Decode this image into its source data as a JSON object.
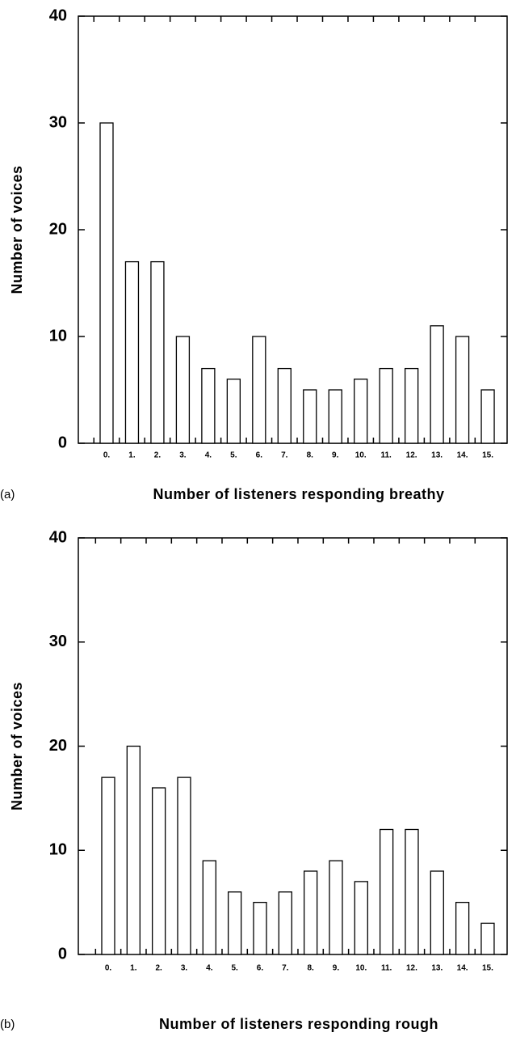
{
  "chart_data": [
    {
      "type": "bar",
      "panel_label": "(a)",
      "xlabel": "Number of listeners responding breathy",
      "ylabel": "Number of voices",
      "categories": [
        "0.",
        "1.",
        "2.",
        "3.",
        "4.",
        "5.",
        "6.",
        "7.",
        "8.",
        "9.",
        "10.",
        "11.",
        "12.",
        "13.",
        "14.",
        "15."
      ],
      "values": [
        30,
        17,
        17,
        10,
        7,
        6,
        10,
        7,
        5,
        5,
        6,
        7,
        7,
        11,
        10,
        5
      ],
      "color": "#ffffff",
      "ylim": [
        0,
        40
      ],
      "yticks": [
        0,
        10,
        20,
        30,
        40
      ]
    },
    {
      "type": "bar",
      "panel_label": "(b)",
      "xlabel": "Number of listeners responding rough",
      "ylabel": "Number of voices",
      "categories": [
        "0.",
        "1.",
        "2.",
        "3.",
        "4.",
        "5.",
        "6.",
        "7.",
        "8.",
        "9.",
        "10.",
        "11.",
        "12.",
        "13.",
        "14.",
        "15."
      ],
      "values": [
        17,
        20,
        16,
        17,
        9,
        6,
        5,
        6,
        8,
        9,
        7,
        12,
        12,
        8,
        5,
        3
      ],
      "color": "#ffffff",
      "ylim": [
        0,
        40
      ],
      "yticks": [
        0,
        10,
        20,
        30,
        40
      ]
    }
  ]
}
